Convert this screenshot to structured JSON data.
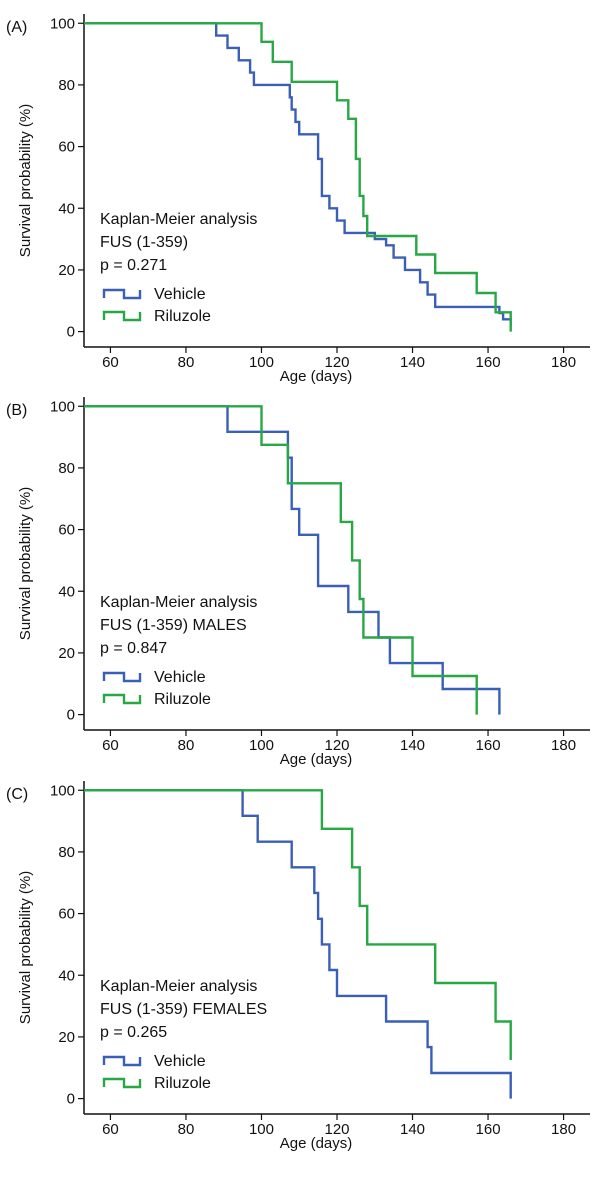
{
  "chart_data": [
    {
      "type": "line",
      "panel_label": "(A)",
      "xlabel": "Age (days)",
      "ylabel": "Survival probability (%)",
      "xlim": [
        53,
        187
      ],
      "ylim": [
        -5,
        103
      ],
      "xticks": [
        60,
        80,
        100,
        120,
        140,
        160,
        180
      ],
      "yticks": [
        0,
        20,
        40,
        60,
        80,
        100
      ],
      "grid": false,
      "annotation": [
        "Kaplan-Meier analysis",
        "FUS (1-359)",
        "p = 0.271"
      ],
      "series": [
        {
          "name": "Vehicle",
          "color": "#3a5fb8",
          "x": [
            53,
            82,
            88,
            91,
            94,
            97,
            98,
            107,
            107.5,
            108,
            109,
            110,
            114,
            115,
            116,
            118,
            120,
            122,
            124,
            128,
            130,
            133,
            135,
            138,
            140,
            142,
            144,
            146,
            148,
            162,
            163,
            164,
            166
          ],
          "y": [
            100,
            100,
            96,
            92,
            88,
            84,
            80,
            80,
            76,
            72,
            68,
            64,
            64,
            56,
            44,
            40,
            36,
            32,
            32,
            32,
            30,
            28,
            24,
            20,
            20,
            16,
            12,
            8,
            8,
            8,
            6,
            4,
            2
          ]
        },
        {
          "name": "Riluzole",
          "color": "#27a844",
          "x": [
            53,
            96,
            100,
            103,
            107,
            108,
            117,
            120,
            123,
            125,
            126,
            127,
            128,
            129,
            130,
            141,
            146,
            157,
            162,
            166
          ],
          "y": [
            100,
            100,
            94,
            87.5,
            87.5,
            81,
            81,
            75,
            69,
            56,
            44,
            37.5,
            31,
            31,
            31,
            25,
            19,
            12.5,
            6.25,
            0
          ]
        }
      ]
    },
    {
      "type": "line",
      "panel_label": "(B)",
      "xlabel": "Age (days)",
      "ylabel": "Survival probability (%)",
      "xlim": [
        53,
        187
      ],
      "ylim": [
        -5,
        103
      ],
      "xticks": [
        60,
        80,
        100,
        120,
        140,
        160,
        180
      ],
      "yticks": [
        0,
        20,
        40,
        60,
        80,
        100
      ],
      "grid": false,
      "annotation": [
        "Kaplan-Meier analysis",
        "FUS (1-359) MALES",
        "p = 0.847"
      ],
      "series": [
        {
          "name": "Vehicle",
          "color": "#3a5fb8",
          "x": [
            53,
            82,
            91,
            107,
            108,
            110,
            114,
            115,
            123,
            131,
            134,
            148,
            163
          ],
          "y": [
            100,
            100,
            91.7,
            83.3,
            66.7,
            58.3,
            58.3,
            41.7,
            33.3,
            25,
            16.7,
            8.3,
            0
          ]
        },
        {
          "name": "Riluzole",
          "color": "#27a844",
          "x": [
            53,
            96,
            100,
            107,
            121,
            124,
            126,
            127,
            140,
            157
          ],
          "y": [
            100,
            100,
            87.5,
            75,
            62.5,
            50,
            37.5,
            25,
            12.5,
            0
          ]
        }
      ]
    },
    {
      "type": "line",
      "panel_label": "(C)",
      "xlabel": "Age (days)",
      "ylabel": "Survival probability (%)",
      "xlim": [
        53,
        187
      ],
      "ylim": [
        -5,
        103
      ],
      "xticks": [
        60,
        80,
        100,
        120,
        140,
        160,
        180
      ],
      "yticks": [
        0,
        20,
        40,
        60,
        80,
        100
      ],
      "grid": false,
      "annotation": [
        "Kaplan-Meier analysis",
        "FUS (1-359) FEMALES",
        "p = 0.265"
      ],
      "series": [
        {
          "name": "Vehicle",
          "color": "#3a5fb8",
          "x": [
            53,
            91,
            95,
            99,
            108,
            114,
            115,
            116,
            118,
            120,
            133,
            144,
            145,
            166
          ],
          "y": [
            100,
            100,
            91.7,
            83.3,
            75,
            66.7,
            58.3,
            50,
            41.7,
            33.3,
            25,
            16.7,
            8.3,
            0
          ]
        },
        {
          "name": "Riluzole",
          "color": "#27a844",
          "x": [
            53,
            107,
            116,
            124,
            126,
            128,
            146,
            162,
            166
          ],
          "y": [
            100,
            100,
            87.5,
            75,
            62.5,
            50,
            37.5,
            25,
            12.5
          ]
        }
      ]
    }
  ]
}
